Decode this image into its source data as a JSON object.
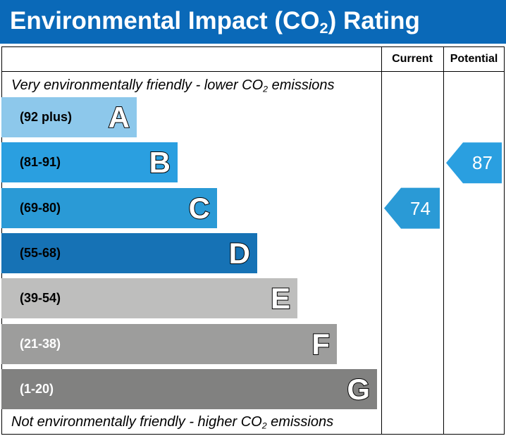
{
  "title": {
    "main": "Environmental Impact (CO",
    "sub": "2",
    "end": ") Rating"
  },
  "columns": {
    "current": "Current",
    "potential": "Potential"
  },
  "captions": {
    "top_pre": "Very environmentally friendly - lower CO",
    "top_sub": "2",
    "top_post": " emissions",
    "bottom_pre": "Not environmentally friendly - higher CO",
    "bottom_sub": "2",
    "bottom_post": " emissions"
  },
  "chart_data": {
    "type": "bar",
    "bands": [
      {
        "letter": "A",
        "range": "(92 plus)",
        "min": 92,
        "max": null,
        "color": "#8dc8eb",
        "range_color": "#000000"
      },
      {
        "letter": "B",
        "range": "(81-91)",
        "min": 81,
        "max": 91,
        "color": "#2a9fe0",
        "range_color": "#000000"
      },
      {
        "letter": "C",
        "range": "(69-80)",
        "min": 69,
        "max": 80,
        "color": "#2a9ad6",
        "range_color": "#000000"
      },
      {
        "letter": "D",
        "range": "(55-68)",
        "min": 55,
        "max": 68,
        "color": "#1672b5",
        "range_color": "#000000"
      },
      {
        "letter": "E",
        "range": "(39-54)",
        "min": 39,
        "max": 54,
        "color": "#bebebd",
        "range_color": "#000000"
      },
      {
        "letter": "F",
        "range": "(21-38)",
        "min": 21,
        "max": 38,
        "color": "#9d9d9c",
        "range_color": "#ffffff"
      },
      {
        "letter": "G",
        "range": "(1-20)",
        "min": 1,
        "max": 20,
        "color": "#818180",
        "range_color": "#ffffff"
      }
    ],
    "current": {
      "value": 74,
      "band": "C",
      "color": "#2a9ad6"
    },
    "potential": {
      "value": 87,
      "band": "B",
      "color": "#2a9fe0"
    }
  }
}
